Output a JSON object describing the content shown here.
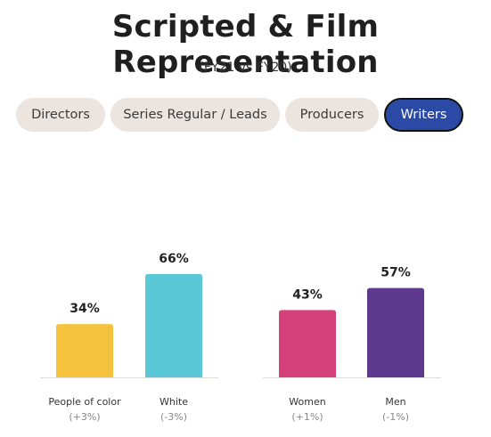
{
  "header": {
    "title": "Scripted & Film Representation",
    "subtitle": "(FY21 vs FY20)"
  },
  "tabs": [
    {
      "label": "Directors",
      "active": false
    },
    {
      "label": "Series Regular / Leads",
      "active": false
    },
    {
      "label": "Producers",
      "active": false
    },
    {
      "label": "Writers",
      "active": true
    }
  ],
  "colors": {
    "people_of_color": "#f4c23c",
    "white": "#5bc8d8",
    "women": "#d6407a",
    "men": "#5e3a8e",
    "tab_active": "#2b4aa6",
    "tab_inactive": "#ece4df"
  },
  "chart_data": [
    {
      "type": "bar",
      "categories": [
        "People of color",
        "White"
      ],
      "values": [
        34,
        66
      ],
      "value_labels": [
        "34%",
        "66%"
      ],
      "change_labels": [
        "(+3%)",
        "(-3%)"
      ],
      "colors": [
        "#f4c23c",
        "#5bc8d8"
      ],
      "ylim": [
        0,
        100
      ]
    },
    {
      "type": "bar",
      "categories": [
        "Women",
        "Men"
      ],
      "values": [
        43,
        57
      ],
      "value_labels": [
        "43%",
        "57%"
      ],
      "change_labels": [
        "(+1%)",
        "(-1%)"
      ],
      "colors": [
        "#d6407a",
        "#5e3a8e"
      ],
      "ylim": [
        0,
        100
      ]
    }
  ]
}
